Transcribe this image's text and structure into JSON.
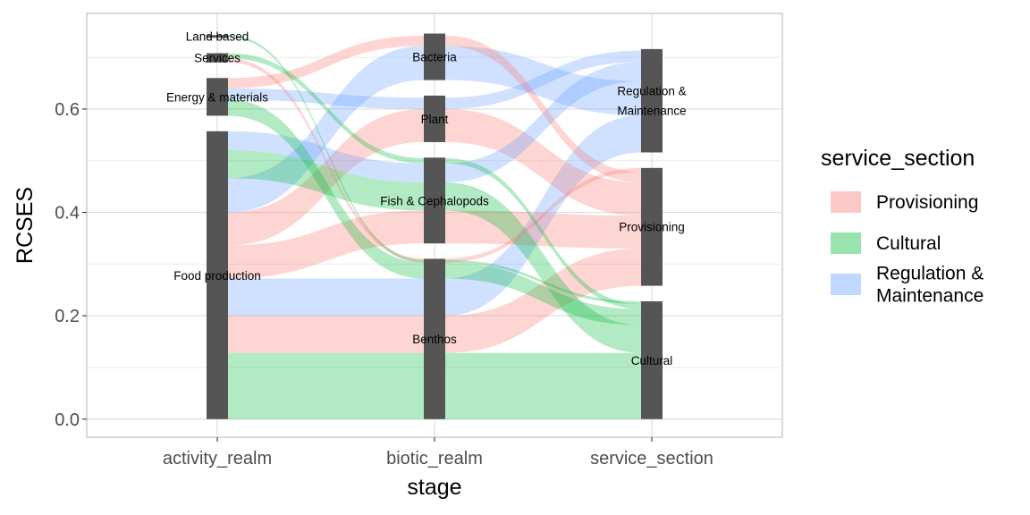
{
  "chart_data": {
    "type": "alluvial",
    "xlabel": "stage",
    "ylabel": "RCSES",
    "ylim": [
      -0.035,
      0.785
    ],
    "yticks": [
      0.0,
      0.2,
      0.4,
      0.6
    ],
    "ytick_labels": [
      "0.0",
      "0.2",
      "0.4",
      "0.6"
    ],
    "grid": true,
    "legend_position": "right",
    "axes": [
      "activity_realm",
      "biotic_realm",
      "service_section"
    ],
    "legend": {
      "title": "service_section",
      "entries": [
        {
          "name": "Provisioning",
          "label_lines": [
            "Provisioning"
          ],
          "color": "#F8766D"
        },
        {
          "name": "Cultural",
          "label_lines": [
            "Cultural"
          ],
          "color": "#00BA38"
        },
        {
          "name": "Regulation & Maintenance",
          "label_lines": [
            "Regulation &",
            "Maintenance"
          ],
          "color": "#619CFF"
        }
      ]
    },
    "strata": [
      [
        {
          "label": "Food production",
          "lines": [
            "Food production"
          ],
          "ymin": 0.0,
          "ymax": 0.557
        },
        {
          "label": "Energy & materials",
          "lines": [
            "Energy & materials"
          ],
          "ymin": 0.587,
          "ymax": 0.66
        },
        {
          "label": "Services",
          "lines": [
            "Services"
          ],
          "ymin": 0.69,
          "ymax": 0.708
        },
        {
          "label": "Land based",
          "lines": [
            "Land based"
          ],
          "ymin": 0.738,
          "ymax": 0.743
        }
      ],
      [
        {
          "label": "Benthos",
          "lines": [
            "Benthos"
          ],
          "ymin": 0.0,
          "ymax": 0.31
        },
        {
          "label": "Fish & Cephalopods",
          "lines": [
            "Fish & Cephalopods"
          ],
          "ymin": 0.34,
          "ymax": 0.506
        },
        {
          "label": "Plant",
          "lines": [
            "Plant"
          ],
          "ymin": 0.536,
          "ymax": 0.626
        },
        {
          "label": "Bacteria",
          "lines": [
            "Bacteria"
          ],
          "ymin": 0.656,
          "ymax": 0.746
        }
      ],
      [
        {
          "label": "Cultural",
          "lines": [
            "Cultural"
          ],
          "ymin": 0.0,
          "ymax": 0.228
        },
        {
          "label": "Provisioning",
          "lines": [
            "Provisioning"
          ],
          "ymin": 0.258,
          "ymax": 0.486
        },
        {
          "label": "Regulation & Maintenance",
          "lines": [
            "Regulation &",
            "Maintenance"
          ],
          "ymin": 0.516,
          "ymax": 0.716
        }
      ]
    ],
    "flows": [
      {
        "service": "Cultural",
        "values": [
          [
            "Food production",
            0.0,
            0.128
          ],
          [
            "Benthos",
            0.0,
            0.128
          ],
          [
            "Cultural",
            0.0,
            0.128
          ]
        ]
      },
      {
        "service": "Provisioning",
        "values": [
          [
            "Food production",
            0.128,
            0.2
          ],
          [
            "Benthos",
            0.128,
            0.2
          ],
          [
            "Provisioning",
            0.258,
            0.33
          ]
        ]
      },
      {
        "service": "Regulation & Maintenance",
        "values": [
          [
            "Food production",
            0.2,
            0.272
          ],
          [
            "Benthos",
            0.2,
            0.272
          ],
          [
            "Regulation & Maintenance",
            0.516,
            0.588
          ]
        ]
      },
      {
        "service": "Provisioning",
        "values": [
          [
            "Food production",
            0.272,
            0.336
          ],
          [
            "Fish & Cephalopods",
            0.34,
            0.404
          ],
          [
            "Provisioning",
            0.33,
            0.394
          ]
        ]
      },
      {
        "service": "Provisioning",
        "values": [
          [
            "Food production",
            0.336,
            0.4
          ],
          [
            "Plant",
            0.536,
            0.6
          ],
          [
            "Provisioning",
            0.394,
            0.458
          ]
        ]
      },
      {
        "service": "Regulation & Maintenance",
        "values": [
          [
            "Food production",
            0.4,
            0.466
          ],
          [
            "Bacteria",
            0.656,
            0.722
          ],
          [
            "Regulation & Maintenance",
            0.588,
            0.654
          ]
        ]
      },
      {
        "service": "Cultural",
        "values": [
          [
            "Food production",
            0.466,
            0.52
          ],
          [
            "Fish & Cephalopods",
            0.404,
            0.458
          ],
          [
            "Cultural",
            0.128,
            0.182
          ]
        ]
      },
      {
        "service": "Regulation & Maintenance",
        "values": [
          [
            "Food production",
            0.52,
            0.557
          ],
          [
            "Fish & Cephalopods",
            0.458,
            0.495
          ],
          [
            "Regulation & Maintenance",
            0.654,
            0.691
          ]
        ]
      },
      {
        "service": "Cultural",
        "values": [
          [
            "Energy & materials",
            0.587,
            0.618
          ],
          [
            "Benthos",
            0.272,
            0.303
          ],
          [
            "Cultural",
            0.182,
            0.213
          ]
        ]
      },
      {
        "service": "Regulation & Maintenance",
        "values": [
          [
            "Energy & materials",
            0.618,
            0.64
          ],
          [
            "Plant",
            0.6,
            0.622
          ],
          [
            "Regulation & Maintenance",
            0.691,
            0.713
          ]
        ]
      },
      {
        "service": "Provisioning",
        "values": [
          [
            "Energy & materials",
            0.64,
            0.66
          ],
          [
            "Bacteria",
            0.722,
            0.742
          ],
          [
            "Provisioning",
            0.458,
            0.478
          ]
        ]
      },
      {
        "service": "Provisioning",
        "values": [
          [
            "Services",
            0.69,
            0.698
          ],
          [
            "Benthos",
            0.303,
            0.311
          ],
          [
            "Provisioning",
            0.478,
            0.486
          ]
        ]
      },
      {
        "service": "Cultural",
        "values": [
          [
            "Services",
            0.698,
            0.708
          ],
          [
            "Fish & Cephalopods",
            0.495,
            0.505
          ],
          [
            "Cultural",
            0.213,
            0.223
          ]
        ]
      },
      {
        "service": "Cultural",
        "values": [
          [
            "Land based",
            0.738,
            0.743
          ],
          [
            "Benthos",
            0.303,
            0.308
          ],
          [
            "Cultural",
            0.223,
            0.228
          ]
        ]
      }
    ]
  }
}
